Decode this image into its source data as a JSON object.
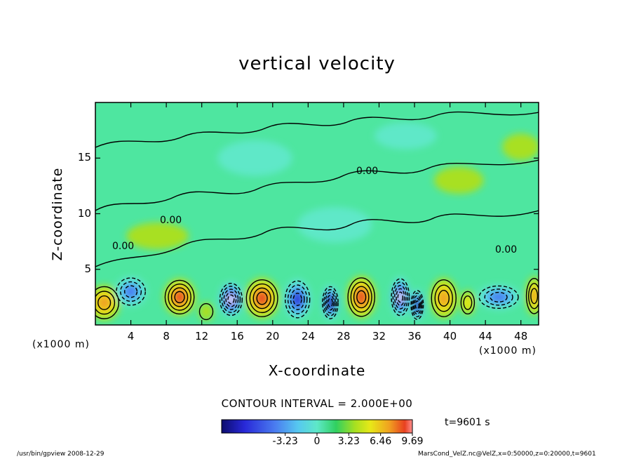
{
  "chart_data": {
    "type": "heatmap",
    "title": "vertical velocity",
    "xlabel": "X-coordinate",
    "ylabel": "Z-coordinate",
    "x_unit": "(x1000 m)",
    "y_unit": "(x1000 m)",
    "xlim": [
      0,
      50
    ],
    "ylim": [
      0,
      20
    ],
    "x_ticks": [
      4,
      8,
      12,
      16,
      20,
      24,
      28,
      32,
      36,
      40,
      44,
      48
    ],
    "y_ticks": [
      5,
      10,
      15
    ],
    "contour_interval_label": "CONTOUR INTERVAL = 2.000E+00",
    "contour_label": "0.00",
    "colorbar": {
      "min": -9.69,
      "max": 9.69,
      "tick_labels": [
        "-3.23",
        "0",
        "3.23",
        "6.46",
        "9.69"
      ],
      "tick_values": [
        -3.23,
        0,
        3.23,
        6.46,
        9.69
      ]
    },
    "time_label": "t=9601 s",
    "colors": [
      "#0c0c6e",
      "#2828d8",
      "#4a7cf0",
      "#56c8f0",
      "#5ee8c8",
      "#30d060",
      "#a8e020",
      "#e8e818",
      "#f0a020",
      "#e84020",
      "#f0d0d0"
    ],
    "cells": [
      {
        "x": 1,
        "z": 2,
        "w": 2.6,
        "h": 2.0,
        "v": 6.5
      },
      {
        "x": 4,
        "z": 3,
        "w": 2.6,
        "h": 1.7,
        "v": -6.5
      },
      {
        "x": 9.5,
        "z": 2.5,
        "w": 2.6,
        "h": 2.1,
        "v": 8.0
      },
      {
        "x": 12.5,
        "z": 1.2,
        "w": 1.2,
        "h": 1.0,
        "v": 2.5
      },
      {
        "x": 15.3,
        "z": 2.3,
        "w": 2.0,
        "h": 2.0,
        "v": -9.5
      },
      {
        "x": 18.8,
        "z": 2.4,
        "w": 2.8,
        "h": 2.3,
        "v": 8.5
      },
      {
        "x": 22.8,
        "z": 2.3,
        "w": 2.2,
        "h": 2.3,
        "v": -8.0
      },
      {
        "x": 26.5,
        "z": 2.0,
        "w": 1.4,
        "h": 2.0,
        "v": -9.0
      },
      {
        "x": 30.0,
        "z": 2.5,
        "w": 2.4,
        "h": 2.4,
        "v": 7.5
      },
      {
        "x": 34.4,
        "z": 2.5,
        "w": 1.6,
        "h": 2.3,
        "v": -9.5
      },
      {
        "x": 36.3,
        "z": 1.8,
        "w": 1.1,
        "h": 1.8,
        "v": -9.0
      },
      {
        "x": 39.3,
        "z": 2.4,
        "w": 2.2,
        "h": 2.3,
        "v": 6.0
      },
      {
        "x": 42.0,
        "z": 2.0,
        "w": 1.2,
        "h": 1.4,
        "v": 3.0
      },
      {
        "x": 45.5,
        "z": 2.5,
        "w": 3.5,
        "h": 1.4,
        "v": -6.5
      },
      {
        "x": 49.5,
        "z": 2.6,
        "w": 1.4,
        "h": 2.2,
        "v": 6.0
      },
      {
        "x": 18,
        "z": 15,
        "w": 6,
        "h": 2.0,
        "v": -1.5
      },
      {
        "x": 27,
        "z": 9,
        "w": 6,
        "h": 2.0,
        "v": -1.5
      },
      {
        "x": 41,
        "z": 13,
        "w": 4,
        "h": 1.5,
        "v": 1.5
      },
      {
        "x": 7,
        "z": 8,
        "w": 5,
        "h": 1.5,
        "v": 1.2
      },
      {
        "x": 35,
        "z": 17,
        "w": 5,
        "h": 1.5,
        "v": -1.2
      },
      {
        "x": 48,
        "z": 16,
        "w": 3,
        "h": 1.5,
        "v": 1.2
      }
    ]
  },
  "footer": {
    "left": "/usr/bin/gpview   2008-12-29",
    "right": "MarsCond_VelZ.nc@VelZ,x=0:50000,z=0:20000,t=9601"
  }
}
